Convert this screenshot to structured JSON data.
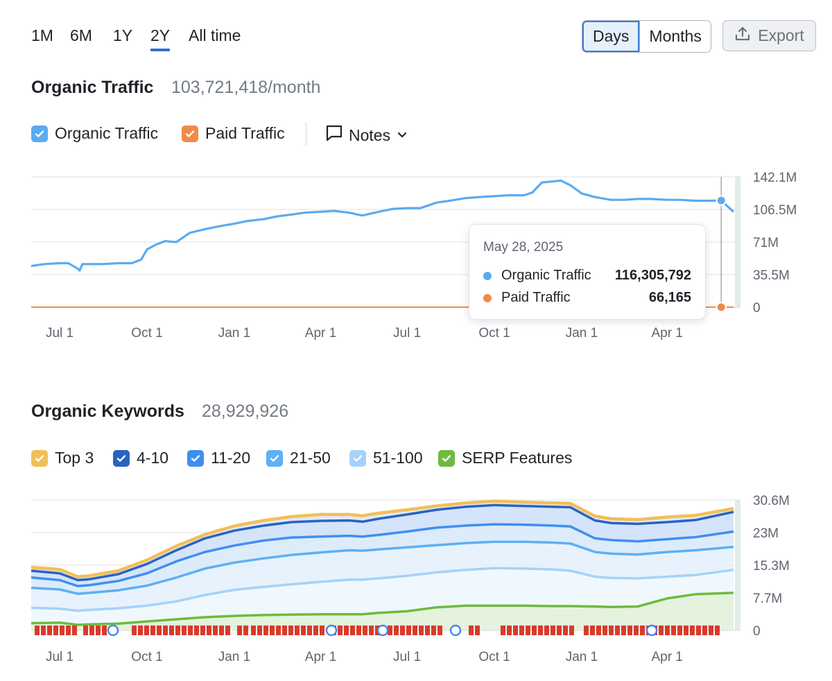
{
  "period_tabs": [
    {
      "label": "1M",
      "active": false
    },
    {
      "label": "6M",
      "active": false
    },
    {
      "label": "1Y",
      "active": false
    },
    {
      "label": "2Y",
      "active": true
    },
    {
      "label": "All time",
      "active": false
    }
  ],
  "granularity": {
    "options": [
      "Days",
      "Months"
    ],
    "selected": "Days"
  },
  "export_label": "Export",
  "colors": {
    "organic": "#5aabf0",
    "paid": "#f08a4b",
    "top3": "#f2bf57",
    "k4_10": "#2a62c2",
    "k11_20": "#3f8ff0",
    "k21_50": "#5cb0f5",
    "k51_100": "#a5d2f9",
    "serp": "#6dbb3e",
    "accent": "#2f6fd1"
  },
  "traffic": {
    "title": "Organic Traffic",
    "value": "103,721,418/month",
    "legend": [
      {
        "label": "Organic Traffic",
        "color": "#5aabf0"
      },
      {
        "label": "Paid Traffic",
        "color": "#f08a4b"
      }
    ],
    "notes_label": "Notes"
  },
  "keywords": {
    "title": "Organic Keywords",
    "value": "28,929,926",
    "legend": [
      {
        "label": "Top 3",
        "color": "#f2bf57"
      },
      {
        "label": "4-10",
        "color": "#2a62c2"
      },
      {
        "label": "11-20",
        "color": "#3f8ff0"
      },
      {
        "label": "21-50",
        "color": "#5cb0f5"
      },
      {
        "label": "51-100",
        "color": "#a5d2f9"
      },
      {
        "label": "SERP Features",
        "color": "#6dbb3e"
      }
    ]
  },
  "tooltip": {
    "date": "May 28, 2025",
    "rows": [
      {
        "label": "Organic Traffic",
        "value": "116,305,792",
        "color": "#5aabf0"
      },
      {
        "label": "Paid Traffic",
        "value": "66,165",
        "color": "#f08a4b"
      }
    ]
  },
  "chart_data": [
    {
      "type": "line",
      "title": "Organic Traffic",
      "x": [
        "2023-06-01",
        "2023-06-15",
        "2023-07-01",
        "2023-07-10",
        "2023-07-20",
        "2023-07-22",
        "2023-07-25",
        "2023-08-01",
        "2023-08-15",
        "2023-09-01",
        "2023-09-15",
        "2023-09-25",
        "2023-10-01",
        "2023-10-10",
        "2023-10-20",
        "2023-11-01",
        "2023-11-15",
        "2023-12-01",
        "2023-12-15",
        "2024-01-01",
        "2024-01-15",
        "2024-02-01",
        "2024-02-15",
        "2024-03-01",
        "2024-03-15",
        "2024-04-01",
        "2024-04-15",
        "2024-05-01",
        "2024-05-10",
        "2024-05-15",
        "2024-06-01",
        "2024-06-15",
        "2024-07-01",
        "2024-07-15",
        "2024-08-01",
        "2024-08-15",
        "2024-09-01",
        "2024-09-15",
        "2024-10-01",
        "2024-10-15",
        "2024-11-01",
        "2024-11-10",
        "2024-11-20",
        "2024-12-01",
        "2024-12-10",
        "2024-12-20",
        "2025-01-01",
        "2025-01-15",
        "2025-02-01",
        "2025-02-15",
        "2025-03-01",
        "2025-03-15",
        "2025-04-01",
        "2025-04-15",
        "2025-05-01",
        "2025-05-15",
        "2025-05-28",
        "2025-06-10"
      ],
      "series": [
        {
          "name": "Organic Traffic",
          "values": [
            45,
            47,
            48,
            48,
            42,
            40,
            47,
            47,
            47,
            48,
            48,
            52,
            63,
            68,
            72,
            71,
            81,
            85,
            88,
            91,
            94,
            96,
            99,
            101,
            103,
            104,
            105,
            103,
            101,
            100,
            104,
            107,
            108,
            108,
            114,
            116,
            119,
            120,
            121,
            122,
            122,
            125,
            136,
            137,
            138,
            133,
            124,
            120,
            117,
            117,
            118,
            118,
            117,
            117,
            116,
            116,
            116.3,
            104
          ]
        },
        {
          "name": "Paid Traffic",
          "values": [
            0.07,
            0.07,
            0.07,
            0.07,
            0.07,
            0.07,
            0.07,
            0.07,
            0.07,
            0.07,
            0.07,
            0.07,
            0.07,
            0.07,
            0.07,
            0.07,
            0.07,
            0.07,
            0.07,
            0.07,
            0.07,
            0.07,
            0.07,
            0.07,
            0.07,
            0.07,
            0.07,
            0.07,
            0.07,
            0.07,
            0.07,
            0.07,
            0.07,
            0.07,
            0.07,
            0.07,
            0.07,
            0.07,
            0.07,
            0.07,
            0.07,
            0.07,
            0.07,
            0.07,
            0.07,
            0.07,
            0.07,
            0.07,
            0.07,
            0.07,
            0.07,
            0.07,
            0.07,
            0.07,
            0.07,
            0.07,
            0.066,
            0.066
          ]
        }
      ],
      "y_ticks": [
        "0",
        "35.5M",
        "71M",
        "106.5M",
        "142.1M"
      ],
      "x_ticks": [
        "Jul 1",
        "Oct 1",
        "Jan 1",
        "Apr 1",
        "Jul 1",
        "Oct 1",
        "Jan 1",
        "Apr 1"
      ],
      "ylim": [
        0,
        142.1
      ],
      "y_unit": "M",
      "grid": true,
      "highlight_date": "2025-05-28"
    },
    {
      "type": "area",
      "title": "Organic Keywords",
      "x": [
        "2023-06-01",
        "2023-07-01",
        "2023-07-20",
        "2023-08-01",
        "2023-09-01",
        "2023-10-01",
        "2023-11-01",
        "2023-12-01",
        "2024-01-01",
        "2024-02-01",
        "2024-03-01",
        "2024-04-01",
        "2024-05-01",
        "2024-05-15",
        "2024-06-01",
        "2024-07-01",
        "2024-08-01",
        "2024-09-01",
        "2024-10-01",
        "2024-11-01",
        "2024-12-01",
        "2024-12-20",
        "2025-01-15",
        "2025-02-01",
        "2025-03-01",
        "2025-04-01",
        "2025-05-01",
        "2025-06-10"
      ],
      "series": [
        {
          "name": "Top 3",
          "values": [
            14.8,
            14.3,
            12.6,
            12.8,
            14.0,
            16.5,
            19.8,
            22.5,
            24.5,
            25.8,
            26.7,
            27.2,
            27.2,
            26.9,
            27.5,
            28.3,
            29.2,
            29.9,
            30.3,
            30.1,
            29.9,
            29.8,
            26.8,
            26.2,
            26.0,
            26.6,
            27.0,
            28.6
          ]
        },
        {
          "name": "4-10",
          "values": [
            14.0,
            13.4,
            11.8,
            12.0,
            13.2,
            15.6,
            18.8,
            21.6,
            23.4,
            24.6,
            25.4,
            25.7,
            25.8,
            25.5,
            26.2,
            27.2,
            28.3,
            29.0,
            29.4,
            29.2,
            29.0,
            28.9,
            25.8,
            25.2,
            25.0,
            25.4,
            25.9,
            27.8
          ]
        },
        {
          "name": "11-20",
          "values": [
            12.4,
            11.8,
            10.4,
            10.6,
            11.6,
            13.4,
            16.2,
            18.4,
            19.9,
            21.1,
            21.8,
            22.0,
            22.2,
            22.0,
            22.4,
            23.2,
            24.1,
            24.6,
            24.9,
            24.8,
            24.6,
            24.4,
            21.6,
            21.2,
            20.9,
            21.4,
            21.9,
            23.2
          ]
        },
        {
          "name": "21-50",
          "values": [
            10.0,
            9.6,
            8.6,
            8.8,
            9.4,
            10.5,
            12.4,
            14.5,
            15.9,
            16.9,
            17.7,
            18.3,
            18.8,
            18.7,
            19.0,
            19.5,
            20.0,
            20.5,
            20.8,
            20.8,
            20.6,
            20.4,
            18.4,
            18.0,
            17.8,
            18.4,
            18.8,
            19.6
          ]
        },
        {
          "name": "51-100",
          "values": [
            5.3,
            5.1,
            4.6,
            4.8,
            5.2,
            5.8,
            6.8,
            8.3,
            9.5,
            10.2,
            10.8,
            11.4,
            11.9,
            11.9,
            12.2,
            12.8,
            13.6,
            14.2,
            14.6,
            14.5,
            14.3,
            14.0,
            12.6,
            12.3,
            12.2,
            12.6,
            13.0,
            14.2
          ]
        },
        {
          "name": "SERP Features",
          "values": [
            1.7,
            1.8,
            1.3,
            1.4,
            1.6,
            2.1,
            2.6,
            3.1,
            3.4,
            3.6,
            3.7,
            3.8,
            3.8,
            3.8,
            4.1,
            4.5,
            5.4,
            5.8,
            5.8,
            5.8,
            5.7,
            5.7,
            5.6,
            5.5,
            5.6,
            7.5,
            8.5,
            8.8
          ]
        }
      ],
      "y_ticks": [
        "0",
        "7.7M",
        "15.3M",
        "23M",
        "30.6M"
      ],
      "x_ticks": [
        "Jul 1",
        "Oct 1",
        "Jan 1",
        "Apr 1",
        "Jul 1",
        "Oct 1",
        "Jan 1",
        "Apr 1"
      ],
      "ylim": [
        0,
        30.6
      ],
      "y_unit": "M",
      "grid": true
    }
  ]
}
